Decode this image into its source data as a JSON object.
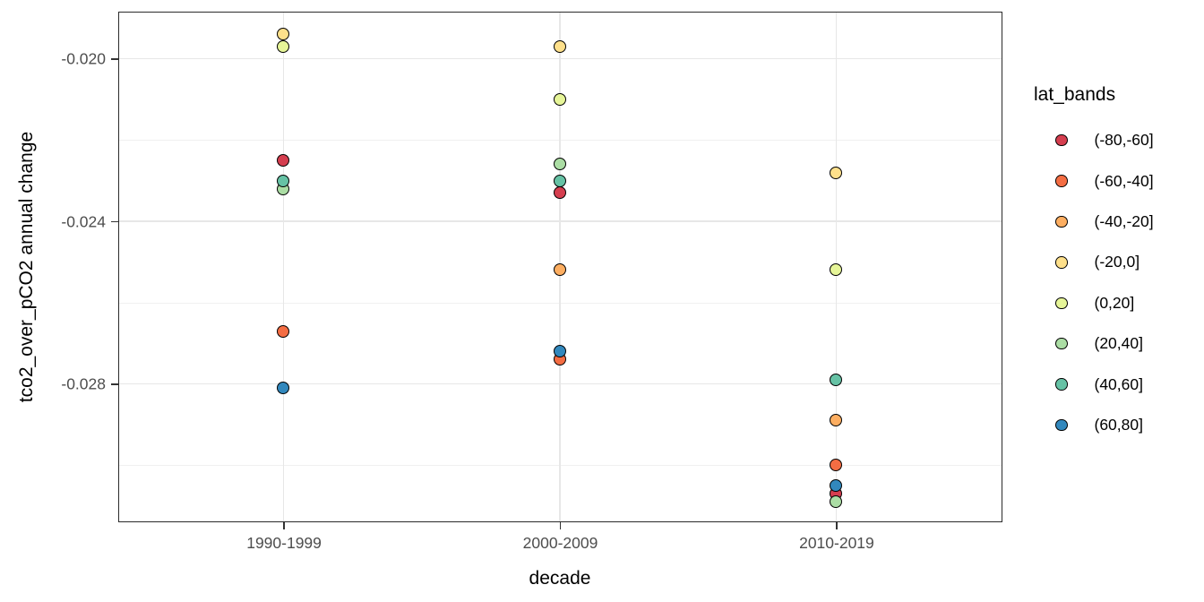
{
  "chart_data": {
    "type": "scatter",
    "title": "",
    "xlabel": "decade",
    "ylabel": "tco2_over_pCO2 annual change",
    "categories": [
      "1990-1999",
      "2000-2009",
      "2010-2019"
    ],
    "y_ticks": [
      -0.02,
      -0.024,
      -0.028
    ],
    "y_tick_labels": [
      "-0.020",
      "-0.024",
      "-0.028"
    ],
    "y_minor_ticks": [
      -0.022,
      -0.026,
      -0.03
    ],
    "ylim": [
      -0.03139,
      -0.01883
    ],
    "grid": true,
    "legend_position": "right",
    "legend_title": "lat_bands",
    "point_stroke": "#000000",
    "series": [
      {
        "name": "(-80,-60]",
        "color": "#D53E4F",
        "points": [
          {
            "decade": "1990-1999",
            "value": -0.0225
          },
          {
            "decade": "2000-2009",
            "value": -0.0233
          },
          {
            "decade": "2010-2019",
            "value": -0.0307
          }
        ]
      },
      {
        "name": "(-60,-40]",
        "color": "#F46D43",
        "points": [
          {
            "decade": "1990-1999",
            "value": -0.0267
          },
          {
            "decade": "2000-2009",
            "value": -0.0274
          },
          {
            "decade": "2010-2019",
            "value": -0.03
          }
        ]
      },
      {
        "name": "(-40,-20]",
        "color": "#FDAE61",
        "points": [
          {
            "decade": "2000-2009",
            "value": -0.0252
          },
          {
            "decade": "2010-2019",
            "value": -0.0289
          }
        ]
      },
      {
        "name": "(-20,0]",
        "color": "#FEE08B",
        "points": [
          {
            "decade": "1990-1999",
            "value": -0.0194
          },
          {
            "decade": "2000-2009",
            "value": -0.0197
          },
          {
            "decade": "2010-2019",
            "value": -0.0228
          }
        ]
      },
      {
        "name": "(0,20]",
        "color": "#E6F598",
        "points": [
          {
            "decade": "1990-1999",
            "value": -0.0197
          },
          {
            "decade": "2000-2009",
            "value": -0.021
          },
          {
            "decade": "2010-2019",
            "value": -0.0252
          }
        ]
      },
      {
        "name": "(20,40]",
        "color": "#ABDDA4",
        "points": [
          {
            "decade": "1990-1999",
            "value": -0.0232
          },
          {
            "decade": "2000-2009",
            "value": -0.0226
          },
          {
            "decade": "2010-2019",
            "value": -0.0309
          }
        ]
      },
      {
        "name": "(40,60]",
        "color": "#66C2A5",
        "points": [
          {
            "decade": "1990-1999",
            "value": -0.023
          },
          {
            "decade": "2000-2009",
            "value": -0.023
          },
          {
            "decade": "2010-2019",
            "value": -0.0279
          }
        ]
      },
      {
        "name": "(60,80]",
        "color": "#3288BD",
        "points": [
          {
            "decade": "1990-1999",
            "value": -0.0281
          },
          {
            "decade": "2000-2009",
            "value": -0.0272
          },
          {
            "decade": "2010-2019",
            "value": -0.0305
          }
        ]
      }
    ]
  }
}
